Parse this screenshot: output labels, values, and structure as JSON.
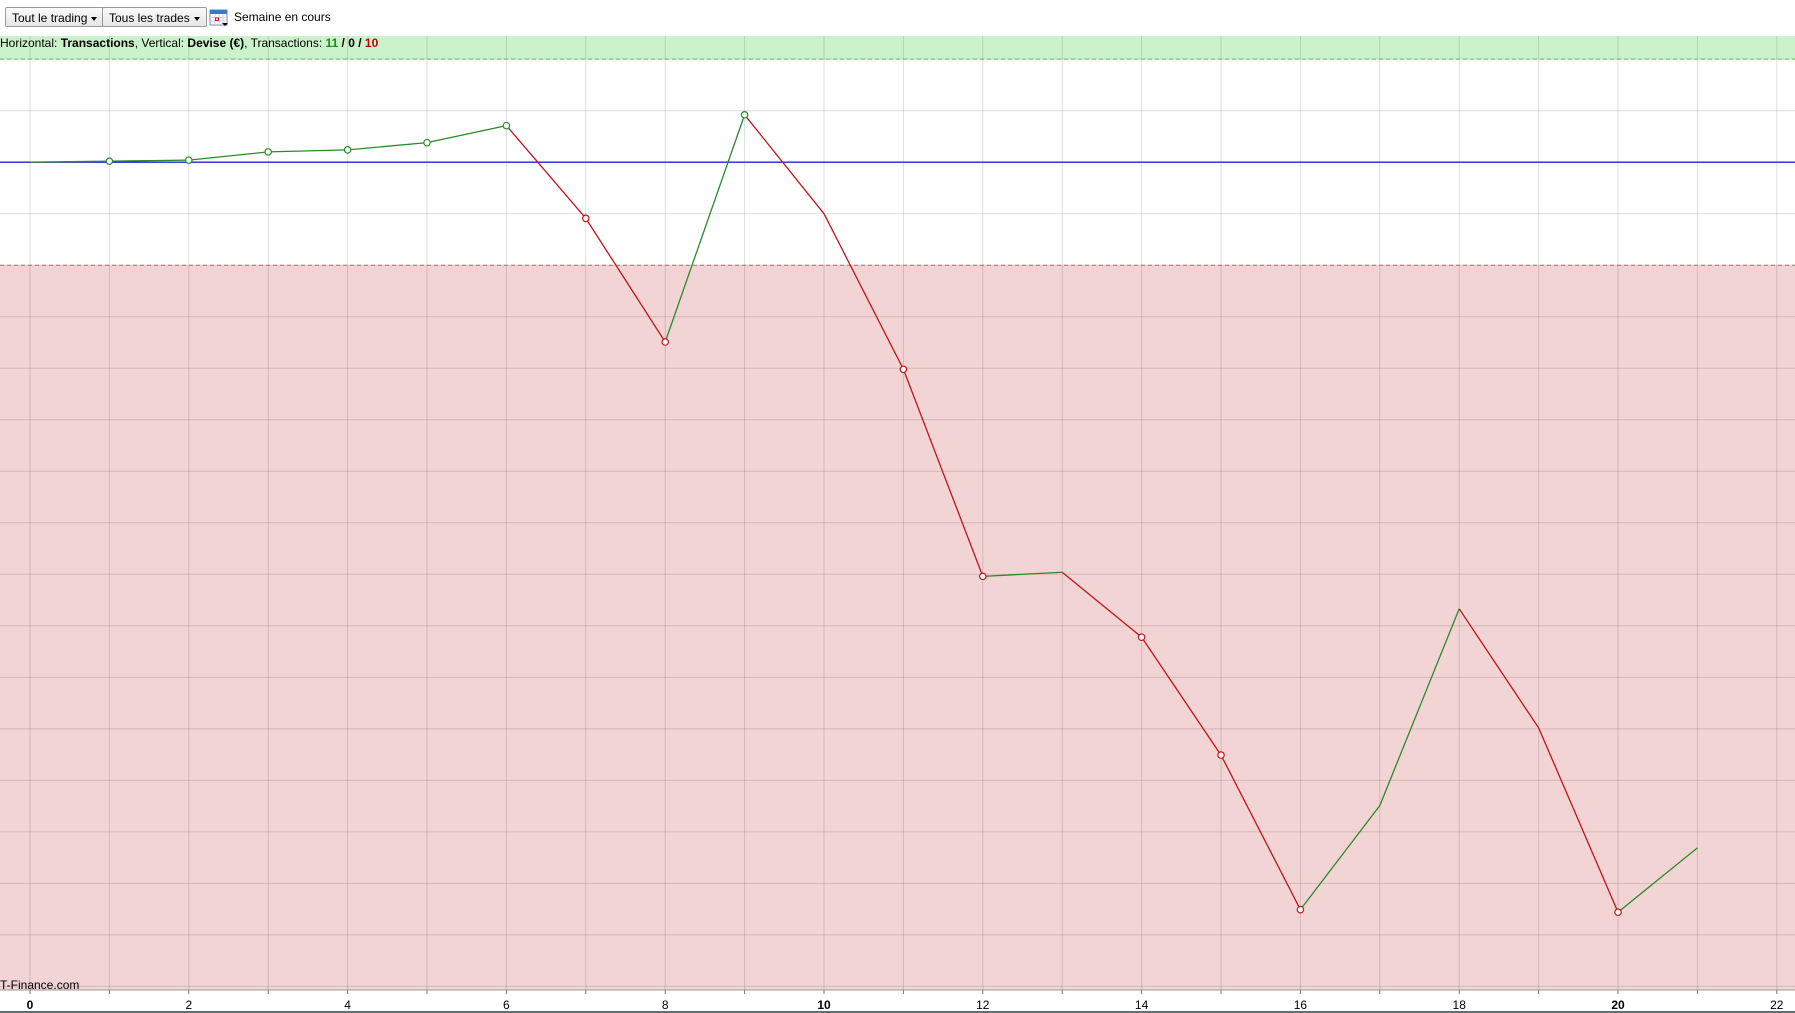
{
  "toolbar": {
    "scope_dropdown": "Tout le trading",
    "trades_dropdown": "Tous les trades",
    "period_label": "Semaine en cours"
  },
  "infobar": {
    "h_prefix": "Horizontal: ",
    "h_value": "Transactions",
    "v_prefix": ", Vertical: ",
    "v_value": "Devise (€)",
    "t_prefix": ", Transactions: ",
    "wins": "11",
    "sep1": " / ",
    "even": "0",
    "sep2": " / ",
    "losses": "10"
  },
  "brand": "T-Finance.com",
  "colors": {
    "up": "#2a8a2a",
    "down": "#c0141c",
    "zero_line": "#2020e0",
    "profit_zone": "#ccf2cc",
    "loss_zone": "#f2d4d4"
  },
  "chart_data": {
    "type": "line",
    "title": "",
    "xlabel": "Transactions",
    "ylabel": "Devise (€)",
    "xlim": [
      0,
      22.5
    ],
    "y_unit_note_visible": false,
    "ylim": [
      -16.07,
      2.45
    ],
    "grid": true,
    "x_ticks": [
      0,
      2,
      4,
      6,
      8,
      10,
      12,
      14,
      16,
      18,
      20,
      22
    ],
    "bold_ticks": [
      0,
      10,
      20
    ],
    "zero_line": 0,
    "profit_threshold": 2,
    "loss_threshold": -2,
    "x": [
      0,
      1,
      2,
      3,
      4,
      5,
      6,
      7,
      8,
      9,
      10,
      11,
      12,
      13,
      14,
      15,
      16,
      17,
      18,
      19,
      20,
      21
    ],
    "y": [
      0,
      0.02,
      0.04,
      0.2,
      0.24,
      0.38,
      0.71,
      -1.09,
      -3.49,
      0.92,
      -1.0,
      -4.02,
      -8.04,
      -7.96,
      -9.22,
      -11.51,
      -14.51,
      -12.49,
      -8.67,
      -10.98,
      -14.56,
      -13.31
    ],
    "markers": [
      1,
      2,
      3,
      4,
      5,
      6,
      7,
      8,
      9,
      11,
      12,
      14,
      15,
      16,
      20
    ]
  }
}
